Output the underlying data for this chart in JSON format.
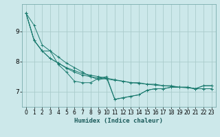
{
  "xlabel": "Humidex (Indice chaleur)",
  "ylabel": "",
  "bg_color": "#cce8ea",
  "grid_color": "#aacccc",
  "line_color": "#1a7a6e",
  "xlim": [
    -0.5,
    23.5
  ],
  "ylim": [
    6.5,
    9.9
  ],
  "yticks": [
    7,
    8,
    9
  ],
  "xticks": [
    0,
    1,
    2,
    3,
    4,
    5,
    6,
    7,
    8,
    9,
    10,
    11,
    12,
    13,
    14,
    15,
    16,
    17,
    18,
    19,
    20,
    21,
    22,
    23
  ],
  "series": [
    [
      9.6,
      9.2,
      8.55,
      8.35,
      7.9,
      7.65,
      7.35,
      7.3,
      7.3,
      7.45,
      7.5,
      6.75,
      6.8,
      6.85,
      6.9,
      7.05,
      7.1,
      7.1,
      7.15,
      7.15,
      7.15,
      7.1,
      7.2,
      7.2
    ],
    [
      9.6,
      8.7,
      8.35,
      8.1,
      7.95,
      7.8,
      7.7,
      7.6,
      7.55,
      7.5,
      7.45,
      7.4,
      7.35,
      7.3,
      7.3,
      7.25,
      7.25,
      7.2,
      7.2,
      7.15,
      7.15,
      7.1,
      7.1,
      7.1
    ],
    [
      9.6,
      8.7,
      8.35,
      8.1,
      7.95,
      7.78,
      7.65,
      7.55,
      7.5,
      7.45,
      7.42,
      7.38,
      7.35,
      7.3,
      7.28,
      7.25,
      7.22,
      7.2,
      7.18,
      7.15,
      7.13,
      7.1,
      7.1,
      7.1
    ],
    [
      9.6,
      8.7,
      8.35,
      8.35,
      8.15,
      7.95,
      7.8,
      7.65,
      7.5,
      7.4,
      7.45,
      6.75,
      6.8,
      6.85,
      6.9,
      7.05,
      7.1,
      7.1,
      7.15,
      7.15,
      7.15,
      7.1,
      7.2,
      7.2
    ]
  ]
}
